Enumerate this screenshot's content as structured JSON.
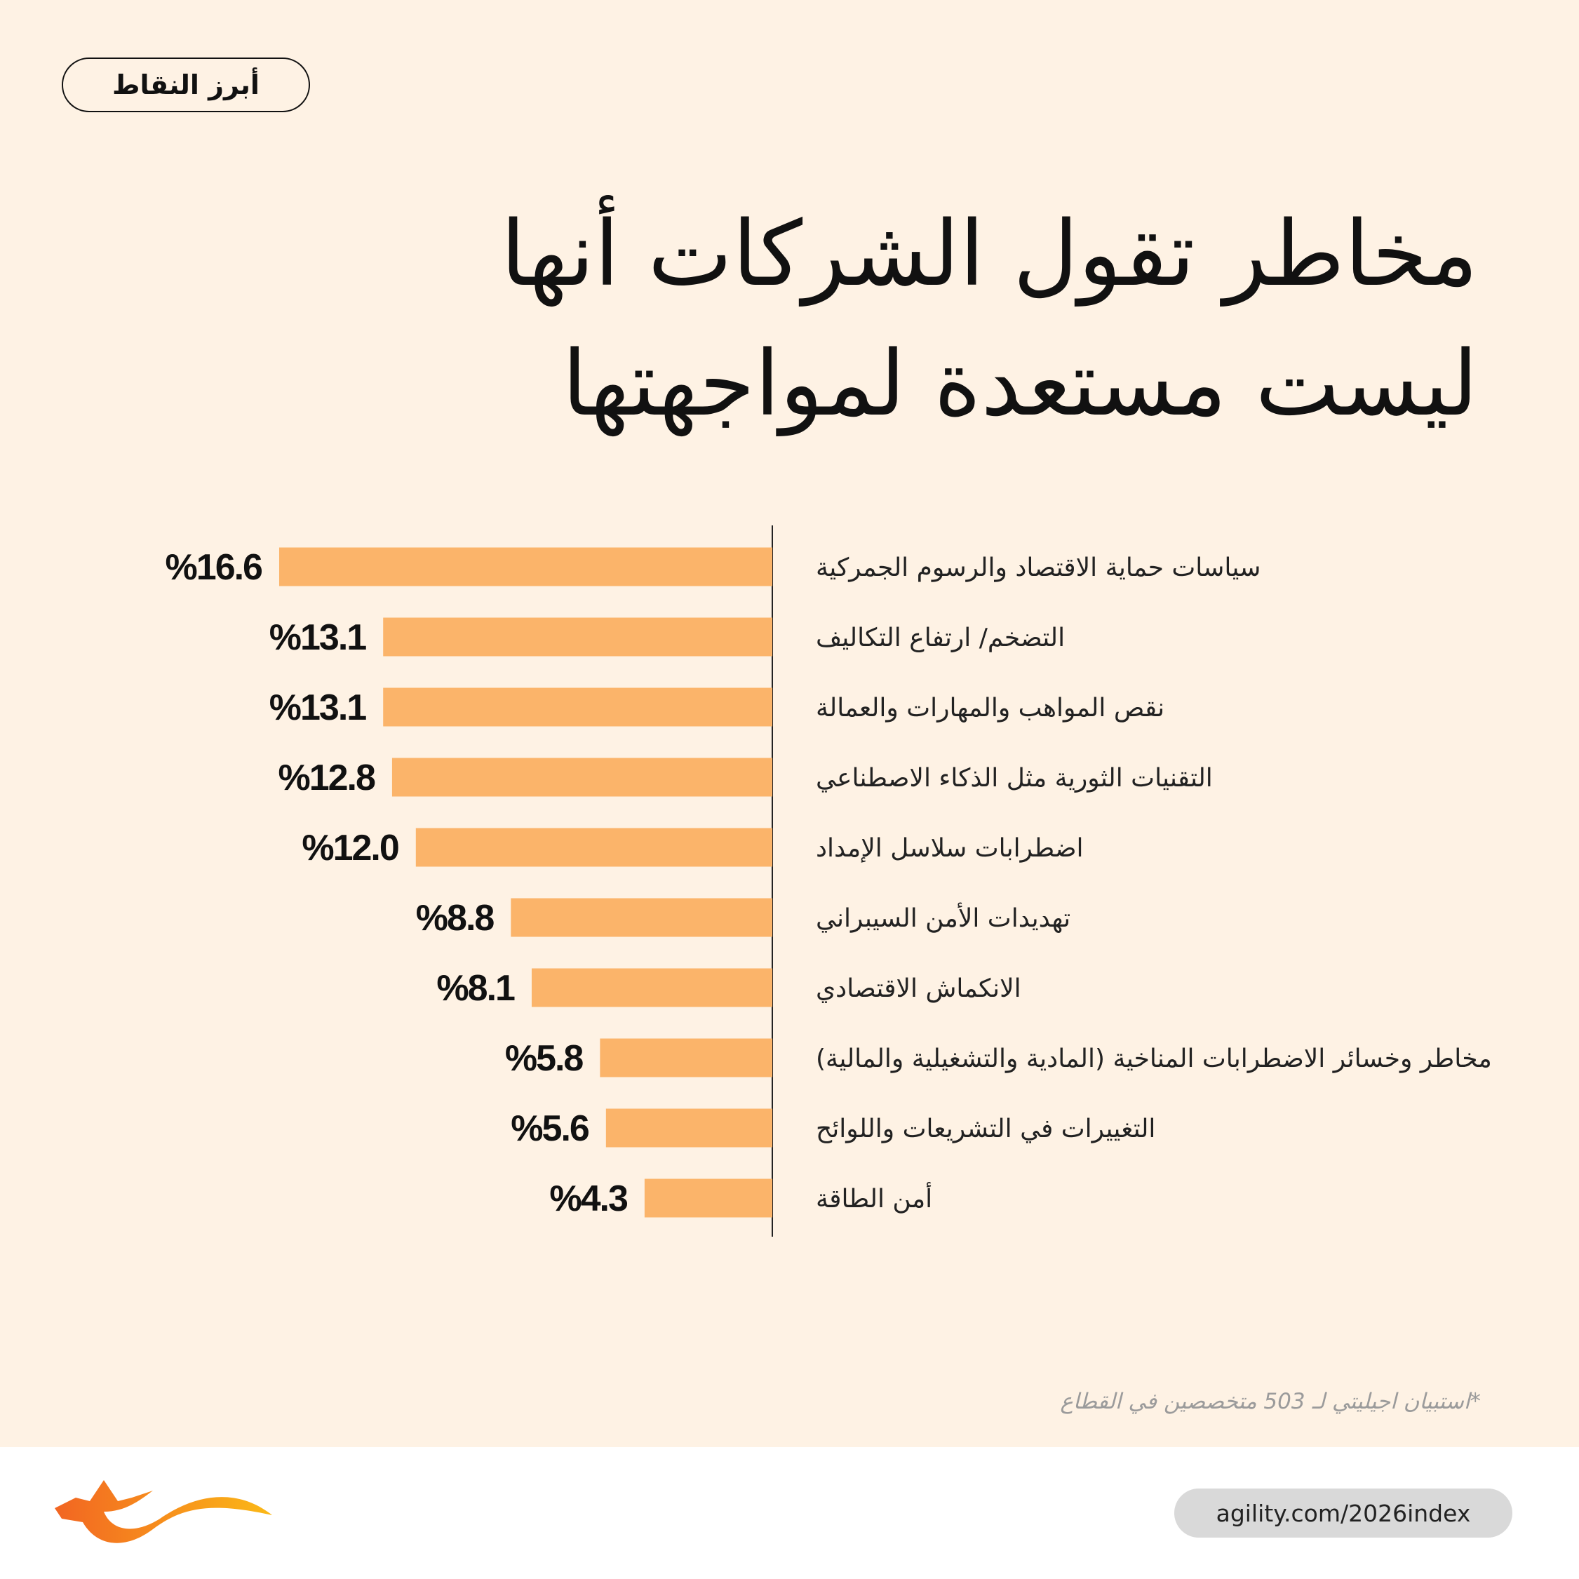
{
  "header": {
    "badge": "أبرز النقاط"
  },
  "title": {
    "line1": "مخاطر تقول الشركات أنها",
    "line2": "ليست مستعدة لمواجهتها"
  },
  "chart_data": {
    "type": "bar",
    "orientation": "horizontal",
    "categories": [
      "سياسات حماية الاقتصاد والرسوم الجمركية",
      "التضخم/ ارتفاع التكاليف",
      "نقص المواهب والمهارات والعمالة",
      "التقنيات الثورية مثل الذكاء الاصطناعي",
      "اضطرابات سلاسل الإمداد",
      "تهديدات الأمن السيبراني",
      "الانكماش الاقتصادي",
      "مخاطر وخسائر الاضطرابات المناخية  (المادية والتشغيلية والمالية)",
      "التغييرات في التشريعات واللوائح",
      "أمن الطاقة"
    ],
    "values": [
      16.6,
      13.1,
      13.1,
      12.8,
      12.0,
      8.8,
      8.1,
      5.8,
      5.6,
      4.3
    ],
    "value_labels": [
      "%16.6",
      "%13.1",
      "%13.1",
      "%12.8",
      "%12.0",
      "%8.8",
      "%8.1",
      "%5.8",
      "%5.6",
      "%4.3"
    ],
    "bar_color": "#fbb46a",
    "grid": false
  },
  "footnote": "*استبيان اجيليتي لـ 503 متخصصين في القطاع",
  "footer": {
    "url": "agility.com/2026index"
  },
  "colors": {
    "background": "#fef2e4",
    "bar": "#fbb46a",
    "logo_orange": "#f26522",
    "logo_yellow": "#fbb917"
  }
}
